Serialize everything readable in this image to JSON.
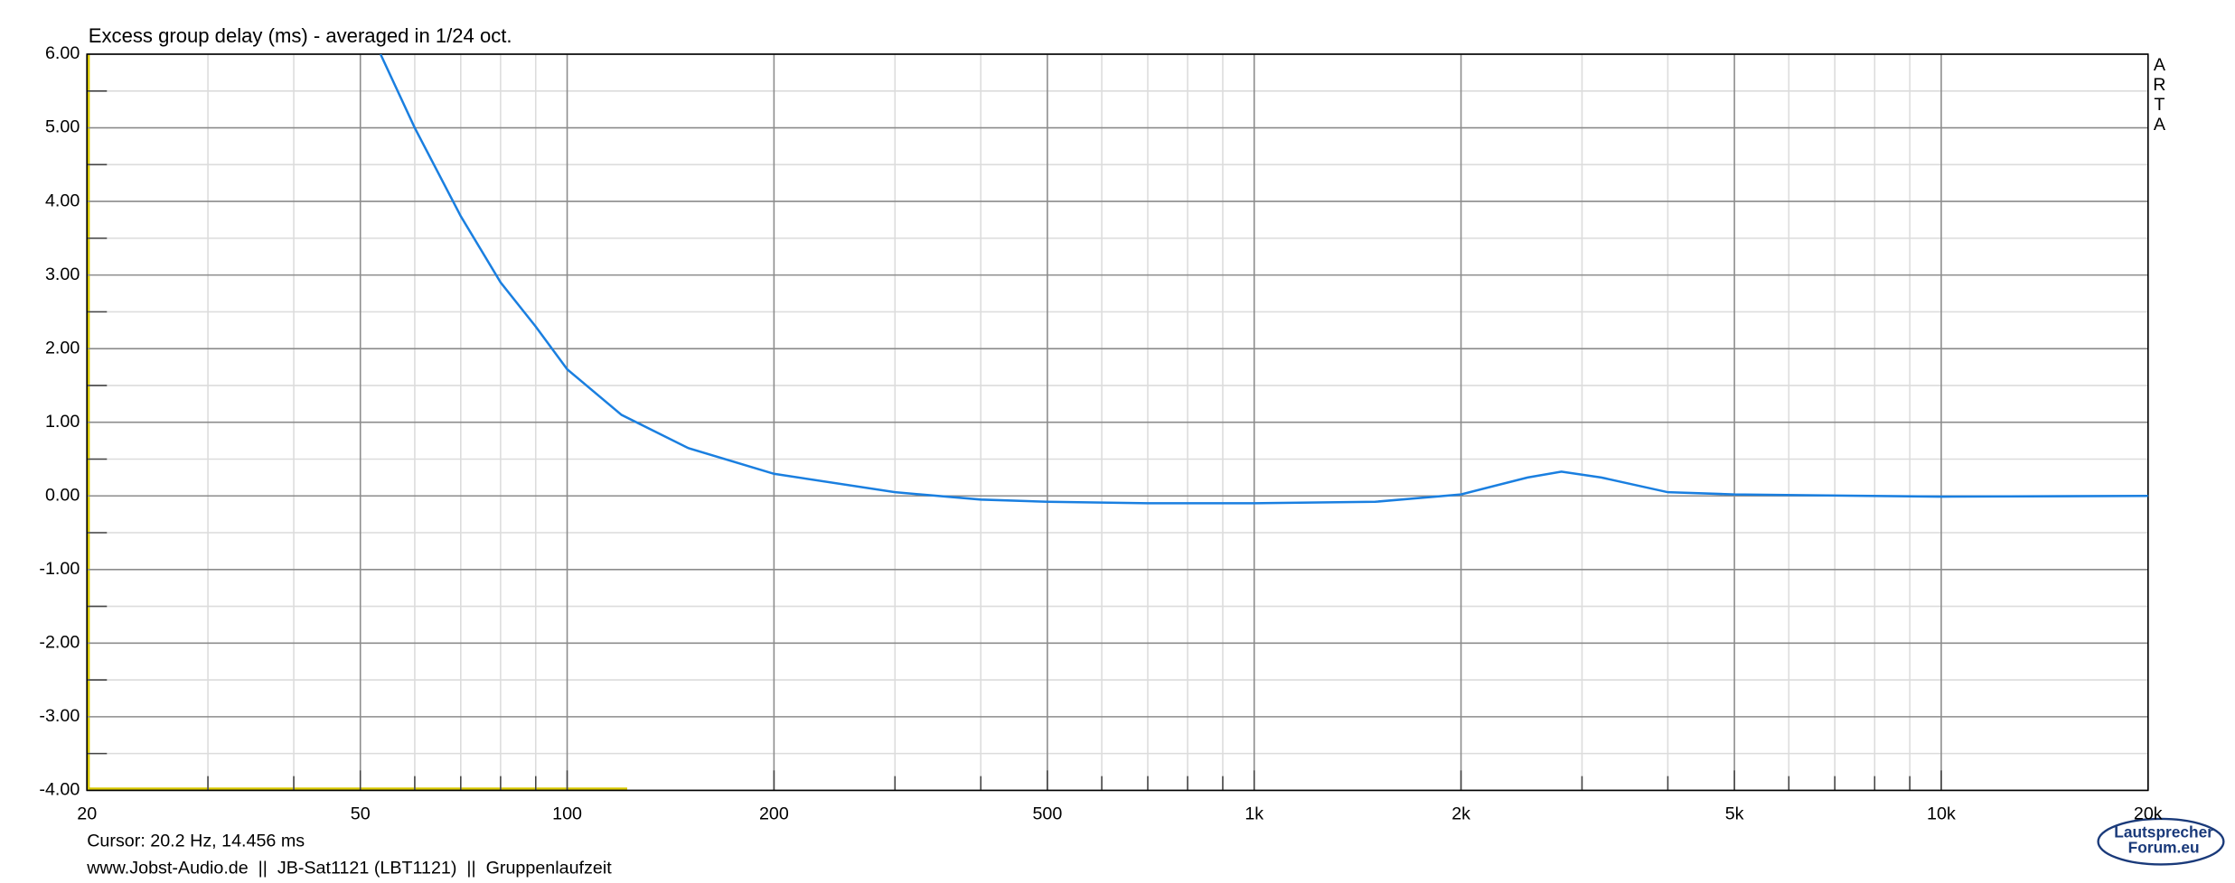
{
  "chart_data": {
    "type": "line",
    "title": "Excess group delay (ms) - averaged in 1/24 oct.",
    "x_scale": "log",
    "grid": true,
    "xlim": [
      20,
      20000
    ],
    "ylim": [
      -4,
      6
    ],
    "xticks": [
      20,
      50,
      100,
      200,
      500,
      {
        "value": 1000,
        "label": "1k"
      },
      {
        "value": 2000,
        "label": "2k"
      },
      {
        "value": 5000,
        "label": "5k"
      },
      {
        "value": 10000,
        "label": "10k"
      },
      {
        "value": 20000,
        "label": "20k"
      }
    ],
    "xticks_minor": [
      30,
      40,
      60,
      70,
      80,
      90,
      300,
      400,
      600,
      700,
      800,
      900,
      3000,
      4000,
      6000,
      7000,
      8000,
      9000
    ],
    "yticks": [
      {
        "value": 6,
        "label": "6.00"
      },
      {
        "value": 5,
        "label": "5.00"
      },
      {
        "value": 4,
        "label": "4.00"
      },
      {
        "value": 3,
        "label": "3.00"
      },
      {
        "value": 2,
        "label": "2.00"
      },
      {
        "value": 1,
        "label": "1.00"
      },
      {
        "value": 0,
        "label": "0.00"
      },
      {
        "value": -1,
        "label": "-1.00"
      },
      {
        "value": -2,
        "label": "-2.00"
      },
      {
        "value": -3,
        "label": "-3.00"
      },
      {
        "value": -4,
        "label": "-4.00"
      }
    ],
    "yticks_minor": [
      5.5,
      4.5,
      3.5,
      2.5,
      1.5,
      0.5,
      -0.5,
      -1.5,
      -2.5,
      -3.5
    ],
    "series": [
      {
        "color": "#1a7fe0",
        "x": [
          53.5,
          60,
          70,
          80,
          90,
          100,
          120,
          150,
          200,
          300,
          400,
          500,
          700,
          1000,
          1500,
          2000,
          2500,
          2800,
          3200,
          4000,
          5000,
          10000,
          20000
        ],
        "values": [
          6.0,
          5.0,
          3.8,
          2.9,
          2.3,
          1.72,
          1.1,
          0.65,
          0.3,
          0.05,
          -0.05,
          -0.08,
          -0.1,
          -0.1,
          -0.08,
          0.02,
          0.25,
          0.33,
          0.25,
          0.05,
          0.02,
          -0.01,
          0.0
        ]
      }
    ],
    "watermark": [
      "A",
      "R",
      "T",
      "A"
    ],
    "cursor": "Cursor: 20.2 Hz, 14.456 ms",
    "footer": "www.Jobst-Audio.de  ||  JB-Sat1121 (LBT1121)  ||  Gruppenlaufzeit",
    "logo": [
      "Lautsprecher",
      "Forum.eu"
    ]
  }
}
